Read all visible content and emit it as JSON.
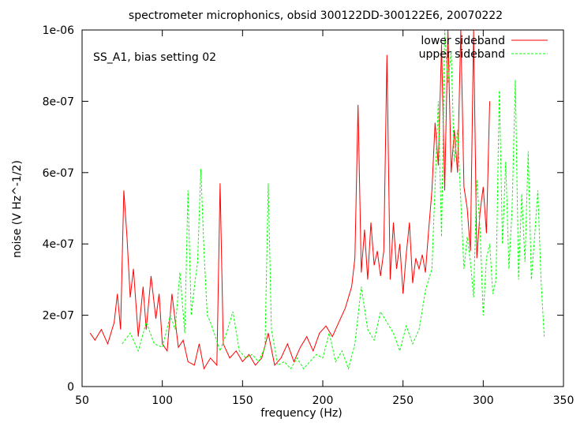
{
  "chart_data": {
    "type": "line",
    "title": "spectrometer microphonics, obsid 300122DD-300122E6, 20070222",
    "annotation": "SS_A1, bias setting 02",
    "xlabel": "frequency (Hz)",
    "ylabel": "noise (V Hz^-1/2)",
    "xlim": [
      50,
      350
    ],
    "ylim": [
      0,
      1e-06
    ],
    "xticks": [
      50,
      100,
      150,
      200,
      250,
      300,
      350
    ],
    "xtick_labels": [
      "50",
      "100",
      "150",
      "200",
      "250",
      "300",
      "350"
    ],
    "yticks": [
      0,
      2e-07,
      4e-07,
      6e-07,
      8e-07,
      1e-06
    ],
    "ytick_labels": [
      "0",
      "2e-07",
      "4e-07",
      "6e-07",
      "8e-07",
      "1e-06"
    ],
    "grid": false,
    "legend_position": "top-right",
    "series": [
      {
        "name": "lower sideband",
        "color": "#ff0000",
        "x": [
          55,
          58,
          62,
          66,
          70,
          72,
          74,
          76,
          78,
          80,
          82,
          85,
          88,
          90,
          93,
          96,
          98,
          100,
          103,
          106,
          110,
          113,
          116,
          120,
          123,
          126,
          130,
          134,
          136,
          138,
          142,
          146,
          150,
          154,
          158,
          162,
          166,
          170,
          174,
          178,
          182,
          186,
          190,
          194,
          198,
          202,
          206,
          210,
          214,
          218,
          220,
          222,
          224,
          226,
          228,
          230,
          232,
          234,
          236,
          238,
          240,
          242,
          244,
          246,
          248,
          250,
          252,
          254,
          256,
          258,
          260,
          262,
          264,
          266,
          268,
          270,
          272,
          274,
          276,
          278,
          280,
          282,
          284,
          286,
          288,
          290,
          292,
          294,
          296,
          298,
          300,
          302,
          304
        ],
        "y": [
          1.5e-07,
          1.3e-07,
          1.6e-07,
          1.2e-07,
          1.8e-07,
          2.6e-07,
          1.6e-07,
          5.5e-07,
          4.2e-07,
          2.5e-07,
          3.3e-07,
          1.4e-07,
          2.8e-07,
          1.6e-07,
          3.1e-07,
          1.9e-07,
          2.6e-07,
          1.2e-07,
          1e-07,
          2.6e-07,
          1.1e-07,
          1.3e-07,
          7e-08,
          6e-08,
          1.2e-07,
          5e-08,
          8e-08,
          6e-08,
          5.7e-07,
          1.2e-07,
          8e-08,
          1e-07,
          7e-08,
          9e-08,
          6e-08,
          8e-08,
          1.5e-07,
          6e-08,
          8e-08,
          1.2e-07,
          7e-08,
          1.1e-07,
          1.4e-07,
          1e-07,
          1.5e-07,
          1.7e-07,
          1.4e-07,
          1.8e-07,
          2.2e-07,
          2.8e-07,
          3.6e-07,
          7.9e-07,
          3.2e-07,
          4.4e-07,
          3e-07,
          4.6e-07,
          3.4e-07,
          3.8e-07,
          3.1e-07,
          3.8e-07,
          9.3e-07,
          3e-07,
          4.6e-07,
          3.3e-07,
          4e-07,
          2.6e-07,
          3.7e-07,
          4.6e-07,
          2.9e-07,
          3.6e-07,
          3.3e-07,
          3.7e-07,
          3.2e-07,
          4.4e-07,
          5.5e-07,
          7.4e-07,
          6.2e-07,
          9.6e-07,
          5.5e-07,
          1e-06,
          6e-07,
          7.2e-07,
          6e-07,
          1e-06,
          5.6e-07,
          5e-07,
          3.8e-07,
          1e-06,
          3.6e-07,
          4.9e-07,
          5.6e-07,
          4.3e-07,
          8e-07
        ]
      },
      {
        "name": "upper sideband",
        "color": "#00ff00",
        "x": [
          75,
          80,
          85,
          90,
          95,
          100,
          105,
          108,
          111,
          114,
          116,
          118,
          120,
          122,
          124,
          126,
          128,
          130,
          133,
          136,
          140,
          144,
          148,
          152,
          156,
          160,
          164,
          166,
          168,
          172,
          176,
          180,
          184,
          188,
          192,
          196,
          200,
          204,
          208,
          212,
          216,
          220,
          224,
          228,
          232,
          236,
          240,
          244,
          248,
          252,
          256,
          260,
          264,
          268,
          272,
          274,
          276,
          278,
          280,
          282,
          284,
          286,
          288,
          290,
          292,
          294,
          296,
          298,
          300,
          302,
          304,
          306,
          308,
          310,
          312,
          314,
          316,
          318,
          320,
          322,
          324,
          326,
          328,
          330,
          332,
          334,
          336,
          338
        ],
        "y": [
          1.2e-07,
          1.5e-07,
          1e-07,
          1.8e-07,
          1.2e-07,
          1.1e-07,
          2e-07,
          1.6e-07,
          3.2e-07,
          1.5e-07,
          5.5e-07,
          2e-07,
          2.8e-07,
          3.5e-07,
          6.1e-07,
          3.8e-07,
          2e-07,
          1.8e-07,
          1.4e-07,
          1e-07,
          1.5e-07,
          2.1e-07,
          1e-07,
          8e-08,
          9e-08,
          7e-08,
          1.1e-07,
          5.7e-07,
          1.6e-07,
          6e-08,
          7e-08,
          5e-08,
          8e-08,
          5e-08,
          7e-08,
          9e-08,
          8e-08,
          1.5e-07,
          7e-08,
          1e-07,
          5e-08,
          1.2e-07,
          2.8e-07,
          1.6e-07,
          1.3e-07,
          2.1e-07,
          1.8e-07,
          1.5e-07,
          1e-07,
          1.7e-07,
          1.2e-07,
          1.6e-07,
          2.7e-07,
          3.3e-07,
          8e-07,
          4.2e-07,
          1e-06,
          8.5e-07,
          9.4e-07,
          6.3e-07,
          7.2e-07,
          5.2e-07,
          3.3e-07,
          4.2e-07,
          3.5e-07,
          2.5e-07,
          5.8e-07,
          4.4e-07,
          2e-07,
          3.6e-07,
          4e-07,
          2.6e-07,
          3e-07,
          8.3e-07,
          4e-07,
          6.3e-07,
          3.3e-07,
          5e-07,
          8.6e-07,
          3e-07,
          5.4e-07,
          3.5e-07,
          6.6e-07,
          3e-07,
          4.2e-07,
          5.5e-07,
          3e-07,
          1.4e-07
        ]
      }
    ]
  }
}
